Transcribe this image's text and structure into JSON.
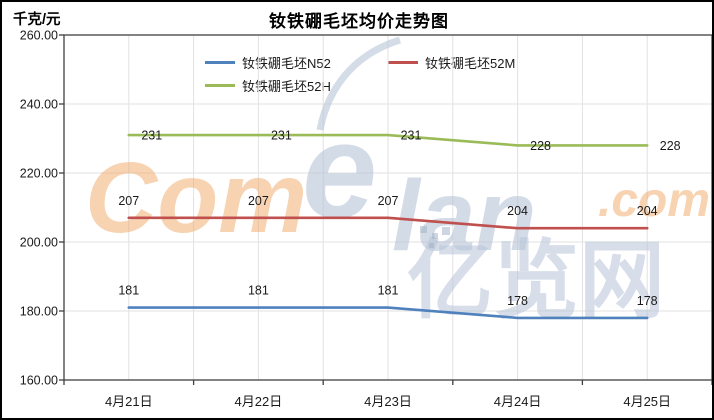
{
  "chart_data": {
    "type": "line",
    "title": "钕铁硼毛坯均价走势图",
    "ylabel": "千克/元",
    "xlabel": "",
    "categories": [
      "4月21日",
      "4月22日",
      "4月23日",
      "4月24日",
      "4月25日"
    ],
    "series": [
      {
        "name": "钕铁硼毛坯N52",
        "color": "#4F81BD",
        "values": [
          181,
          181,
          181,
          178,
          178
        ]
      },
      {
        "name": "钕铁硼毛坯52M",
        "color": "#C0504D",
        "values": [
          207,
          207,
          207,
          204,
          204
        ]
      },
      {
        "name": "钕铁硼毛坯52H",
        "color": "#9BBB59",
        "values": [
          231,
          231,
          231,
          228,
          228
        ]
      }
    ],
    "ylim": [
      160,
      260
    ],
    "ytick_step": 20,
    "ytick_labels": [
      "260.00",
      "240.00",
      "220.00",
      "200.00",
      "180.00",
      "160.00"
    ],
    "grid": true,
    "legend_position": "top-center",
    "data_labels_visible": true
  },
  "watermark": {
    "part1": "Com",
    "part2": "e",
    "part3": "lan",
    "part4": ".com",
    "part5": "亿览网",
    "orange": "#F0A868",
    "blue": "#B7C4D8"
  },
  "colors": {
    "plot_border": "#404040",
    "gridline": "#E2E2E2",
    "text": "#1a1a1a"
  }
}
